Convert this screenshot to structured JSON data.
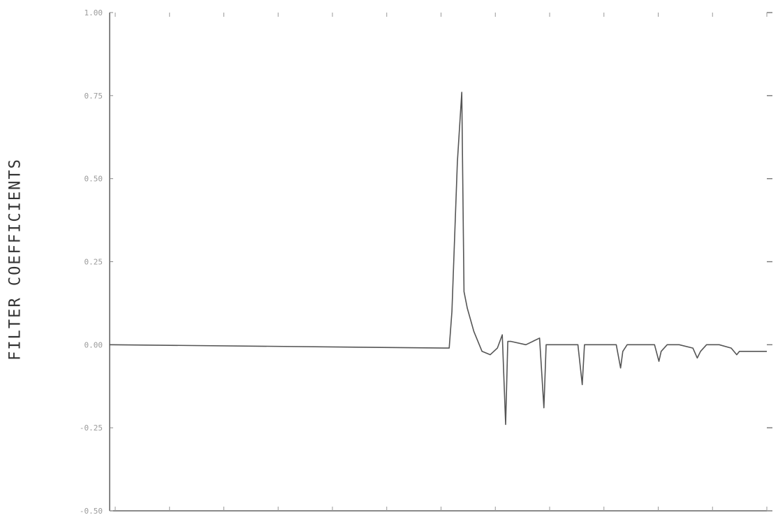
{
  "chart_data": {
    "type": "line",
    "title": "",
    "xlabel": "",
    "ylabel": "FILTER COEFFICIENTS",
    "ylim": [
      -0.5,
      1.0
    ],
    "yticks": [
      "1.00",
      "0.75",
      "0.50",
      "0.25",
      "0.00",
      "-0.25",
      "-0.50"
    ],
    "ytick_values": [
      1.0,
      0.75,
      0.5,
      0.25,
      0.0,
      -0.25,
      -0.5
    ],
    "xlim": [
      0,
      120
    ],
    "x_tick_count": 13,
    "grid": false,
    "series": [
      {
        "x": [
          0,
          62,
          62.5,
          63.5,
          64.3,
          64.7,
          65.3,
          66.5,
          68,
          69.5,
          70.8,
          71.7,
          72.3,
          72.7,
          73.3,
          76,
          78.5,
          79.3,
          79.7,
          80.3,
          83,
          85.5,
          86.3,
          86.7,
          87.3,
          90,
          92.5,
          93.3,
          93.7,
          94.5,
          97,
          99.5,
          100.3,
          100.7,
          101.8,
          104,
          106.5,
          107.3,
          107.9,
          109,
          111.3,
          113.5,
          114.5,
          115,
          120
        ],
        "y": [
          0.0,
          -0.01,
          0.1,
          0.55,
          0.76,
          0.16,
          0.11,
          0.04,
          -0.02,
          -0.03,
          -0.01,
          0.03,
          -0.24,
          0.01,
          0.01,
          0.0,
          0.02,
          -0.19,
          0.0,
          0.0,
          0.0,
          0.0,
          -0.12,
          0.0,
          0.0,
          0.0,
          0.0,
          -0.07,
          -0.02,
          0.0,
          0.0,
          0.0,
          -0.05,
          -0.02,
          0.0,
          0.0,
          -0.01,
          -0.04,
          -0.02,
          0.0,
          0.0,
          -0.01,
          -0.03,
          -0.02,
          -0.02
        ]
      }
    ]
  }
}
